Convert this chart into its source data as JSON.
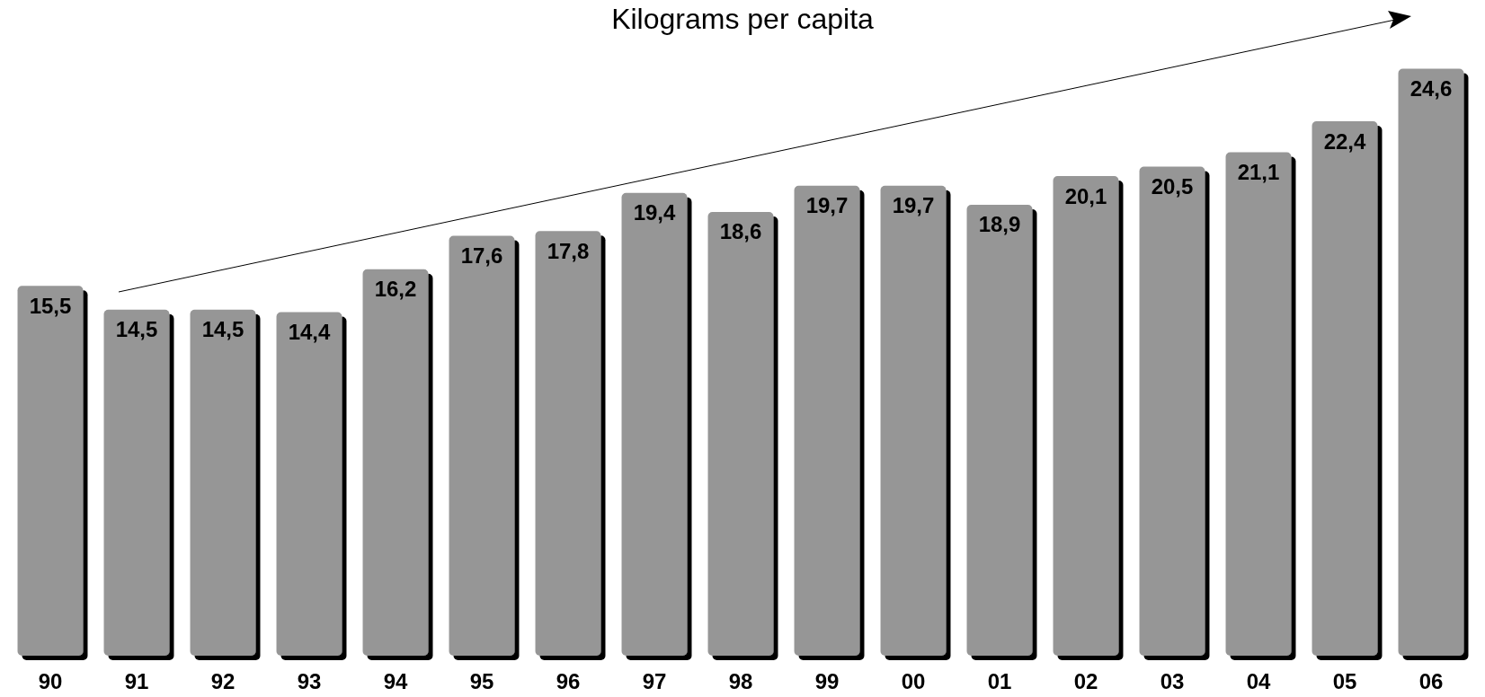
{
  "chart_data": {
    "type": "bar",
    "title": "Kilograms per capita",
    "categories": [
      "90",
      "91",
      "92",
      "93",
      "94",
      "95",
      "96",
      "97",
      "98",
      "99",
      "00",
      "01",
      "02",
      "03",
      "04",
      "05",
      "06"
    ],
    "values": [
      15.5,
      14.5,
      14.5,
      14.4,
      16.2,
      17.6,
      17.8,
      19.4,
      18.6,
      19.7,
      19.7,
      18.9,
      20.1,
      20.5,
      21.1,
      22.4,
      24.6
    ],
    "value_labels": [
      "15,5",
      "14,5",
      "14,5",
      "14,4",
      "16,2",
      "17,6",
      "17,8",
      "19,4",
      "18,6",
      "19,7",
      "19,7",
      "18,9",
      "20,1",
      "20,5",
      "21,1",
      "22,4",
      "24,6"
    ],
    "color": "#969696"
  }
}
